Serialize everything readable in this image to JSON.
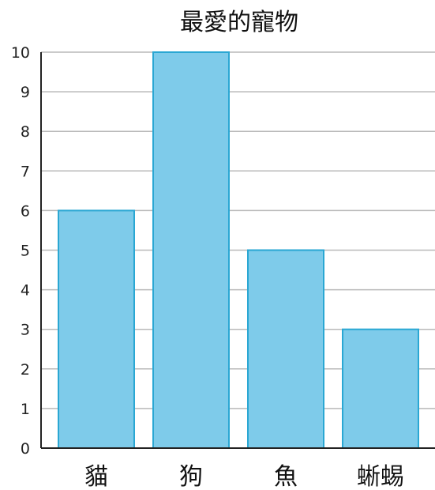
{
  "chart_data": {
    "type": "bar",
    "title": "最愛的寵物",
    "categories": [
      "貓",
      "狗",
      "魚",
      "蜥蜴"
    ],
    "values": [
      6,
      10,
      5,
      3
    ],
    "xlabel": "",
    "ylabel": "",
    "ylim": [
      0,
      10
    ],
    "yticks": [
      "0",
      "1",
      "2",
      "3",
      "4",
      "5",
      "6",
      "7",
      "8",
      "9",
      "10"
    ],
    "grid": true,
    "legend": "none",
    "colors": {
      "bar_fill": "#7ecbea",
      "bar_stroke": "#2aa7d3",
      "grid": "#b9b9b9",
      "axis": "#222222"
    }
  }
}
